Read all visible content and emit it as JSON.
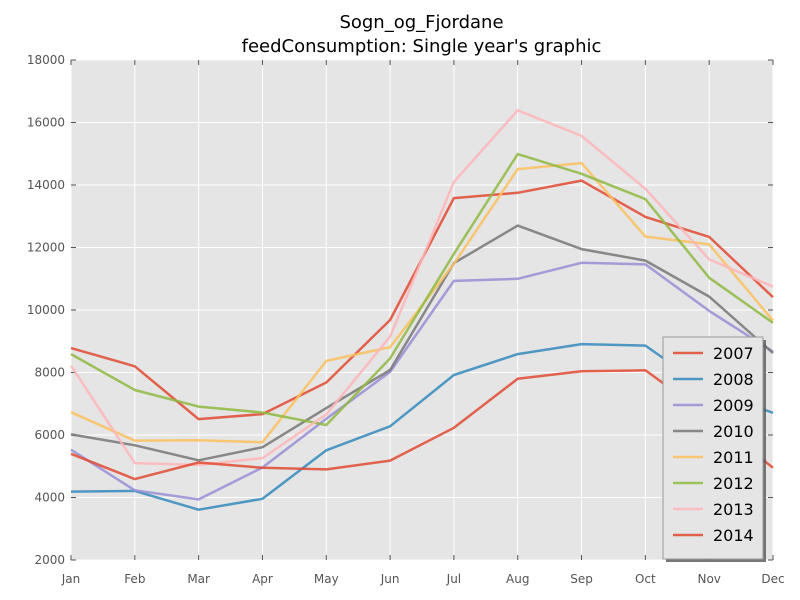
{
  "chart_data": {
    "type": "line",
    "title": "Sogn_og_Fjordane",
    "subtitle": "feedConsumption: Single year's graphic",
    "xlabel": "",
    "ylabel": "",
    "categories": [
      "Jan",
      "Feb",
      "Mar",
      "Apr",
      "May",
      "Jun",
      "Jul",
      "Aug",
      "Sep",
      "Oct",
      "Nov",
      "Dec"
    ],
    "ylim": [
      2000,
      18000
    ],
    "yticks": [
      2000,
      4000,
      6000,
      8000,
      10000,
      12000,
      14000,
      16000,
      18000
    ],
    "grid": true,
    "legend_position": "lower-right",
    "series": [
      {
        "name": "2007",
        "color": "#E24A33",
        "values": [
          8780,
          8200,
          6510,
          6670,
          7680,
          9680,
          13580,
          13750,
          14140,
          12980,
          12340,
          10410
        ]
      },
      {
        "name": "2008",
        "color": "#348ABD",
        "values": [
          4190,
          4210,
          3610,
          3960,
          5510,
          6280,
          7920,
          8590,
          8910,
          8860,
          7430,
          6710
        ]
      },
      {
        "name": "2009",
        "color": "#988ED5",
        "values": [
          5530,
          4230,
          3940,
          4960,
          6520,
          8020,
          10930,
          11000,
          11510,
          11460,
          9970,
          8670
        ]
      },
      {
        "name": "2010",
        "color": "#777777",
        "values": [
          6020,
          5670,
          5190,
          5610,
          6860,
          8080,
          11500,
          12700,
          11950,
          11580,
          10430,
          8620
        ]
      },
      {
        "name": "2011",
        "color": "#FBC15E",
        "values": [
          6730,
          5820,
          5830,
          5770,
          8370,
          8810,
          11480,
          14510,
          14700,
          12350,
          12100,
          9660
        ]
      },
      {
        "name": "2012",
        "color": "#8EBA42",
        "values": [
          8590,
          7440,
          6910,
          6720,
          6320,
          8450,
          11800,
          14990,
          14360,
          13550,
          11030,
          9590
        ]
      },
      {
        "name": "2013",
        "color": "#FFB5B8",
        "values": [
          8220,
          5100,
          5040,
          5260,
          6660,
          9150,
          14100,
          16390,
          15570,
          13880,
          11620,
          10750
        ]
      },
      {
        "name": "2014",
        "color": "#E24A33",
        "values": [
          5400,
          4590,
          5120,
          4950,
          4900,
          5180,
          6230,
          7800,
          8040,
          8070,
          6590,
          4950
        ]
      }
    ]
  }
}
